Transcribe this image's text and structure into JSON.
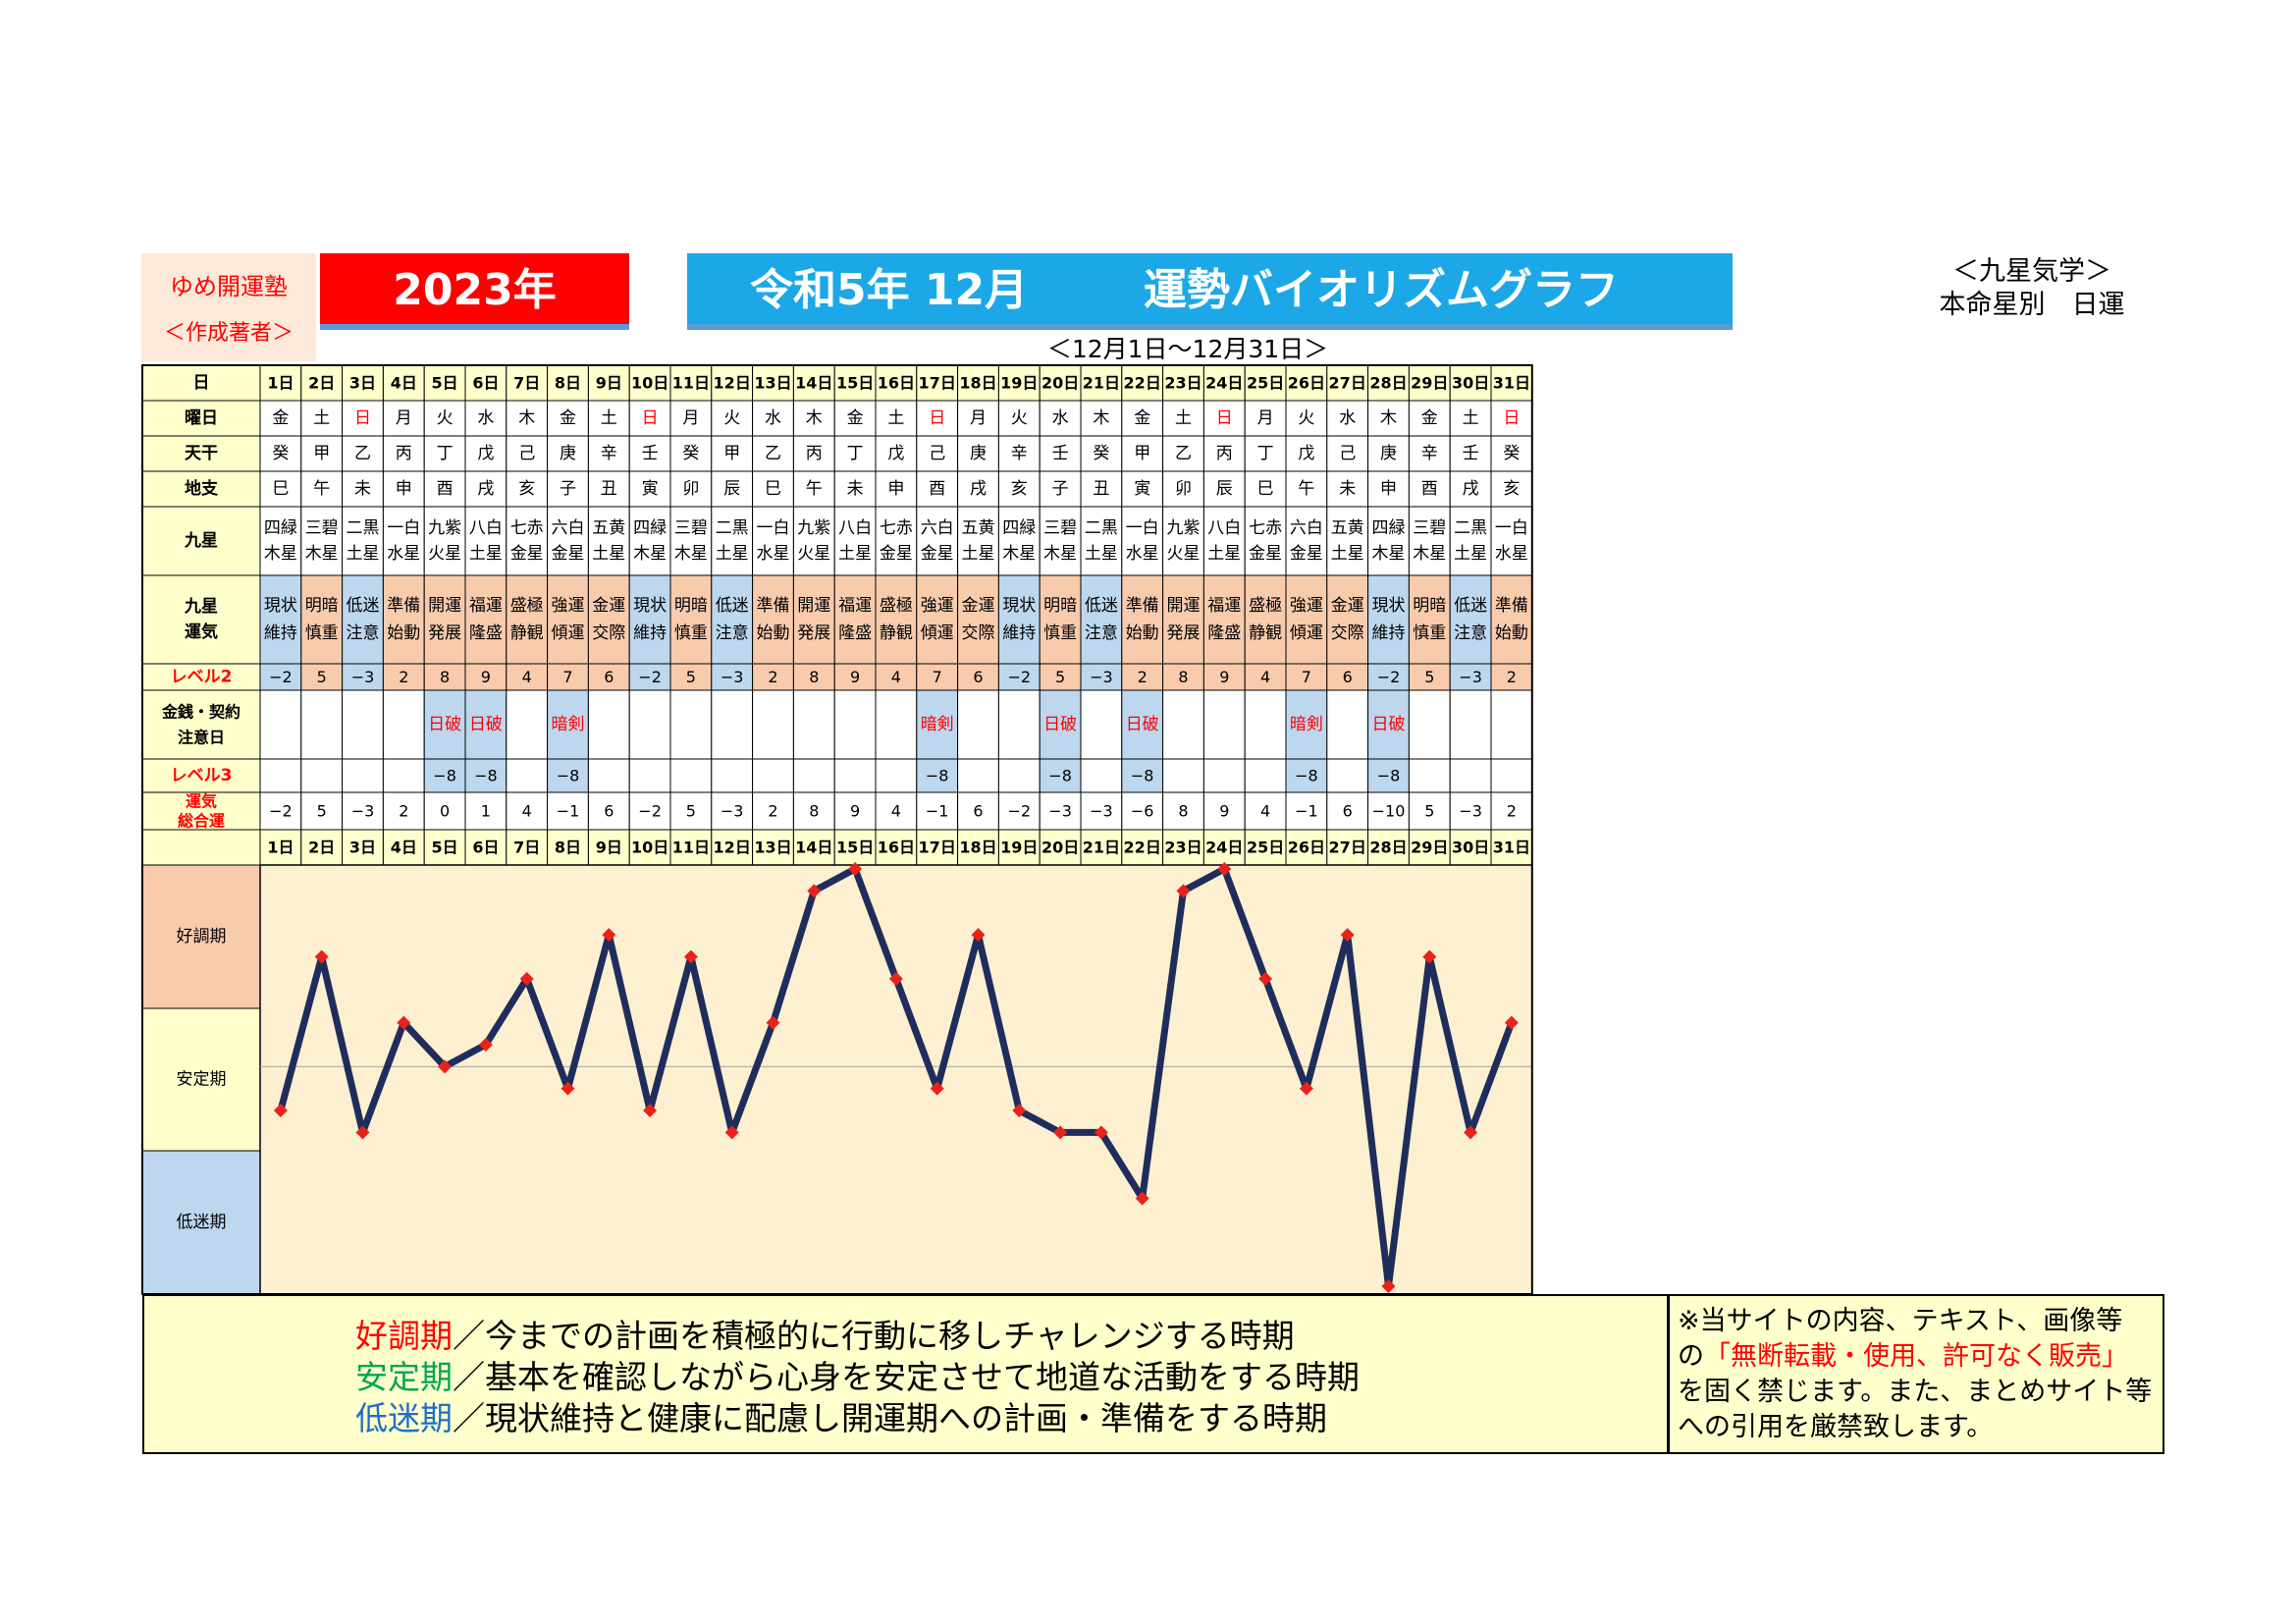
{
  "header": {
    "brand_line1": "ゆめ開運塾",
    "brand_line2": "＜作成著者＞",
    "year": "2023年",
    "title_part1": "令和5年 12月",
    "title_part2": "運勢バイオリズムグラフ",
    "range": "＜12月1日～12月31日＞",
    "kyusei_line1": "＜九星気学＞",
    "kyusei_line2": "本命星別　日運"
  },
  "row_labels": {
    "day": "日",
    "weekday": "曜日",
    "tenkan": "天干",
    "chishi": "地支",
    "kyusei": [
      "九星"
    ],
    "kyusei_unki": [
      "九星",
      "運気"
    ],
    "level2": "レベル2",
    "kinsen": [
      "金銭・契約",
      "注意日"
    ],
    "level3": "レベル3",
    "total": [
      "運気",
      "総合運"
    ]
  },
  "period_labels": [
    "好調期",
    "安定期",
    "低迷期"
  ],
  "colors": {
    "title_blue": "#1ca8e6",
    "year_red": "#ff0000",
    "header_yellow": "#ffffcc",
    "line_navy": "#1f2d5c",
    "marker_red": "#e8231c",
    "peach": "#f8cbad",
    "light_blue": "#bdd7ee",
    "grid_cream": "#fdf0d0"
  },
  "days": [
    "1日",
    "2日",
    "3日",
    "4日",
    "5日",
    "6日",
    "7日",
    "8日",
    "9日",
    "10日",
    "11日",
    "12日",
    "13日",
    "14日",
    "15日",
    "16日",
    "17日",
    "18日",
    "19日",
    "20日",
    "21日",
    "22日",
    "23日",
    "24日",
    "25日",
    "26日",
    "27日",
    "28日",
    "29日",
    "30日",
    "31日"
  ],
  "weekdays": [
    "金",
    "土",
    "日",
    "月",
    "火",
    "水",
    "木",
    "金",
    "土",
    "日",
    "月",
    "火",
    "水",
    "木",
    "金",
    "土",
    "日",
    "月",
    "火",
    "水",
    "木",
    "金",
    "土",
    "日",
    "月",
    "火",
    "水",
    "木",
    "金",
    "土",
    "日"
  ],
  "tenkan": [
    "癸",
    "甲",
    "乙",
    "丙",
    "丁",
    "戊",
    "己",
    "庚",
    "辛",
    "壬",
    "癸",
    "甲",
    "乙",
    "丙",
    "丁",
    "戊",
    "己",
    "庚",
    "辛",
    "壬",
    "癸",
    "甲",
    "乙",
    "丙",
    "丁",
    "戊",
    "己",
    "庚",
    "辛",
    "壬",
    "癸"
  ],
  "chishi": [
    "巳",
    "午",
    "未",
    "申",
    "酉",
    "戌",
    "亥",
    "子",
    "丑",
    "寅",
    "卯",
    "辰",
    "巳",
    "午",
    "未",
    "申",
    "酉",
    "戌",
    "亥",
    "子",
    "丑",
    "寅",
    "卯",
    "辰",
    "巳",
    "午",
    "未",
    "申",
    "酉",
    "戌",
    "亥"
  ],
  "kyusei": [
    [
      "四緑",
      "木星"
    ],
    [
      "三碧",
      "木星"
    ],
    [
      "二黒",
      "土星"
    ],
    [
      "一白",
      "水星"
    ],
    [
      "九紫",
      "火星"
    ],
    [
      "八白",
      "土星"
    ],
    [
      "七赤",
      "金星"
    ],
    [
      "六白",
      "金星"
    ],
    [
      "五黄",
      "土星"
    ],
    [
      "四緑",
      "木星"
    ],
    [
      "三碧",
      "木星"
    ],
    [
      "二黒",
      "土星"
    ],
    [
      "一白",
      "水星"
    ],
    [
      "九紫",
      "火星"
    ],
    [
      "八白",
      "土星"
    ],
    [
      "七赤",
      "金星"
    ],
    [
      "六白",
      "金星"
    ],
    [
      "五黄",
      "土星"
    ],
    [
      "四緑",
      "木星"
    ],
    [
      "三碧",
      "木星"
    ],
    [
      "二黒",
      "土星"
    ],
    [
      "一白",
      "水星"
    ],
    [
      "九紫",
      "火星"
    ],
    [
      "八白",
      "土星"
    ],
    [
      "七赤",
      "金星"
    ],
    [
      "六白",
      "金星"
    ],
    [
      "五黄",
      "土星"
    ],
    [
      "四緑",
      "木星"
    ],
    [
      "三碧",
      "木星"
    ],
    [
      "二黒",
      "土星"
    ],
    [
      "一白",
      "水星"
    ]
  ],
  "unki": [
    [
      "現状",
      "維持"
    ],
    [
      "明暗",
      "慎重"
    ],
    [
      "低迷",
      "注意"
    ],
    [
      "準備",
      "始動"
    ],
    [
      "開運",
      "発展"
    ],
    [
      "福運",
      "隆盛"
    ],
    [
      "盛極",
      "静観"
    ],
    [
      "強運",
      "傾運"
    ],
    [
      "金運",
      "交際"
    ],
    [
      "現状",
      "維持"
    ],
    [
      "明暗",
      "慎重"
    ],
    [
      "低迷",
      "注意"
    ],
    [
      "準備",
      "始動"
    ],
    [
      "開運",
      "発展"
    ],
    [
      "福運",
      "隆盛"
    ],
    [
      "盛極",
      "静観"
    ],
    [
      "強運",
      "傾運"
    ],
    [
      "金運",
      "交際"
    ],
    [
      "現状",
      "維持"
    ],
    [
      "明暗",
      "慎重"
    ],
    [
      "低迷",
      "注意"
    ],
    [
      "準備",
      "始動"
    ],
    [
      "開運",
      "発展"
    ],
    [
      "福運",
      "隆盛"
    ],
    [
      "盛極",
      "静観"
    ],
    [
      "強運",
      "傾運"
    ],
    [
      "金運",
      "交際"
    ],
    [
      "現状",
      "維持"
    ],
    [
      "明暗",
      "慎重"
    ],
    [
      "低迷",
      "注意"
    ],
    [
      "準備",
      "始動"
    ]
  ],
  "level2": [
    "−2",
    "5",
    "−3",
    "2",
    "8",
    "9",
    "4",
    "7",
    "6",
    "−2",
    "5",
    "−3",
    "2",
    "8",
    "9",
    "4",
    "7",
    "6",
    "−2",
    "5",
    "−3",
    "2",
    "8",
    "9",
    "4",
    "7",
    "6",
    "−2",
    "5",
    "−3",
    "2"
  ],
  "kinsen": [
    "",
    "",
    "",
    "",
    "日破",
    "日破",
    "",
    "暗剣",
    "",
    "",
    "",
    "",
    "",
    "",
    "",
    "",
    "暗剣",
    "",
    "",
    "日破",
    "",
    "日破",
    "",
    "",
    "",
    "暗剣",
    "",
    "日破",
    "",
    "",
    ""
  ],
  "level3": [
    "",
    "",
    "",
    "",
    "−8",
    "−8",
    "",
    "−8",
    "",
    "",
    "",
    "",
    "",
    "",
    "",
    "",
    "−8",
    "",
    "",
    "−8",
    "",
    "−8",
    "",
    "",
    "",
    "−8",
    "",
    "−8",
    "",
    "",
    ""
  ],
  "total_labels": [
    "−2",
    "5",
    "−3",
    "2",
    "0",
    "1",
    "4",
    "−1",
    "6",
    "−2",
    "5",
    "−3",
    "2",
    "8",
    "9",
    "4",
    "−1",
    "6",
    "−2",
    "−3",
    "−3",
    "−6",
    "8",
    "9",
    "4",
    "−1",
    "6",
    "−10",
    "5",
    "−3",
    "2"
  ],
  "chart_data": {
    "type": "line",
    "x": [
      1,
      2,
      3,
      4,
      5,
      6,
      7,
      8,
      9,
      10,
      11,
      12,
      13,
      14,
      15,
      16,
      17,
      18,
      19,
      20,
      21,
      22,
      23,
      24,
      25,
      26,
      27,
      28,
      29,
      30,
      31
    ],
    "categories": [
      "1日",
      "2日",
      "3日",
      "4日",
      "5日",
      "6日",
      "7日",
      "8日",
      "9日",
      "10日",
      "11日",
      "12日",
      "13日",
      "14日",
      "15日",
      "16日",
      "17日",
      "18日",
      "19日",
      "20日",
      "21日",
      "22日",
      "23日",
      "24日",
      "25日",
      "26日",
      "27日",
      "28日",
      "29日",
      "30日",
      "31日"
    ],
    "series": [
      {
        "values": [
          -2,
          5,
          -3,
          2,
          0,
          1,
          4,
          -1,
          6,
          -2,
          5,
          -3,
          2,
          8,
          9,
          4,
          -1,
          6,
          -2,
          -3,
          -3,
          -6,
          8,
          9,
          4,
          -1,
          6,
          -10,
          5,
          -3,
          2
        ]
      }
    ],
    "ylim": [
      -10,
      9
    ],
    "bands": [
      "好調期",
      "安定期",
      "低迷期"
    ],
    "grid": false,
    "xlabel": "",
    "ylabel": "",
    "title": ""
  },
  "legend": [
    {
      "term": "好調期",
      "text": "／今までの計画を積極的に行動に移しチャレンジする時期",
      "color": "#ff0000"
    },
    {
      "term": "安定期",
      "text": "／基本を確認しながら心身を安定させて地道な活動をする時期",
      "color": "#00a651"
    },
    {
      "term": "低迷期",
      "text": "／現状維持と健康に配慮し開運期への計画・準備をする時期",
      "color": "#1f6fc5"
    }
  ],
  "notice": {
    "line1": "※当サイトの内容、テキスト、画像等",
    "line2_pre": "の",
    "line2_red": "「無断転載・使用、許可なく販売」",
    "line3": "を固く禁じます。また、まとめサイト等",
    "line4": "への引用を厳禁致します。"
  }
}
